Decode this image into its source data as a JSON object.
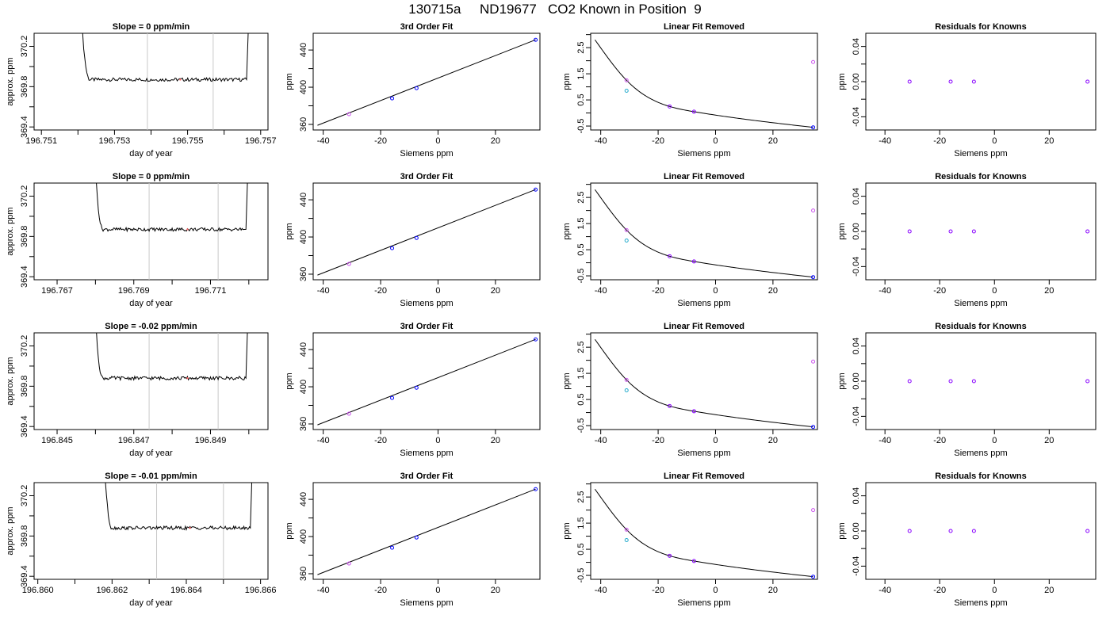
{
  "title": "130715a     ND19677   CO2 Known in Position  9",
  "colors": {
    "axis": "#000000",
    "curve": "#000000",
    "window_line": "#c8c8c8",
    "point_blue": "#0000ff",
    "point_violet": "#cc55ee",
    "point_cyan": "#22aacc",
    "point_purple": "#8800ff",
    "marker_red": "#ff6666"
  },
  "chart_data": [
    {
      "type": "line",
      "title": "Slope =  0  ppm/min",
      "xlabel": "day of year",
      "ylabel": "approx. ppm",
      "xlim": [
        196.7508,
        196.7572
      ],
      "ylim": [
        369.37,
        370.33
      ],
      "xticks": [
        196.751,
        196.753,
        196.755,
        196.757
      ],
      "xtick_labels": [
        "196.751",
        "196.753",
        "196.755",
        "196.757"
      ],
      "yticks": [
        369.4,
        369.8,
        370.2
      ],
      "ytick_labels": [
        "369.4",
        "369.8",
        "370.2"
      ],
      "window": [
        196.7539,
        196.7557
      ],
      "trace": {
        "start": 196.7521,
        "end": 196.7567,
        "level": 369.87
      },
      "marker": 196.7548
    },
    {
      "type": "scatter",
      "title": "3rd Order Fit",
      "xlabel": "Siemens ppm",
      "ylabel": "ppm",
      "xlim": [
        -43.5,
        35.5
      ],
      "ylim": [
        354,
        458
      ],
      "xticks": [
        -40,
        -20,
        0,
        20
      ],
      "xtick_labels": [
        "-40",
        "-20",
        "0",
        "20"
      ],
      "yticks": [
        360,
        400,
        440
      ],
      "ytick_labels": [
        "360",
        "400",
        "440"
      ],
      "points": [
        [
          -31,
          371
        ],
        [
          -16,
          388
        ],
        [
          -7.5,
          399
        ],
        [
          34,
          451
        ]
      ],
      "fit_line": {
        "x": [
          -42,
          34
        ],
        "y": [
          359,
          451
        ]
      }
    },
    {
      "type": "scatter",
      "title": "Linear Fit Removed",
      "xlabel": "Siemens ppm",
      "ylabel": "ppm",
      "xlim": [
        -43.5,
        35.5
      ],
      "ylim": [
        -0.65,
        3.05
      ],
      "xticks": [
        -40,
        -20,
        0,
        20
      ],
      "xtick_labels": [
        "-40",
        "-20",
        "0",
        "20"
      ],
      "yticks": [
        -0.5,
        0.5,
        1.5,
        2.5
      ],
      "ytick_labels": [
        "-0.5",
        "0.5",
        "1.5",
        "2.5"
      ],
      "points": [
        [
          -31,
          1.25
        ],
        [
          -31,
          0.85
        ],
        [
          -16,
          0.25
        ],
        [
          -7.5,
          0.05
        ],
        [
          34,
          1.95
        ],
        [
          34,
          -0.55
        ]
      ],
      "curve_knots": {
        "x": [
          -42,
          -31,
          -16,
          -7.5,
          34
        ],
        "y": [
          2.8,
          1.25,
          0.25,
          0.05,
          -0.55
        ]
      }
    },
    {
      "type": "scatter",
      "title": "Residuals for Knowns",
      "xlabel": "Siemens ppm",
      "ylabel": "ppm",
      "xlim": [
        -47,
        37
      ],
      "ylim": [
        -0.055,
        0.055
      ],
      "xticks": [
        -40,
        -20,
        0,
        20
      ],
      "xtick_labels": [
        "-40",
        "-20",
        "0",
        "20"
      ],
      "yticks": [
        -0.04,
        0.0,
        0.04
      ],
      "ytick_labels": [
        "-0.04",
        "0.00",
        "0.04"
      ],
      "points": [
        [
          -31,
          0
        ],
        [
          -16,
          0
        ],
        [
          -7.5,
          0
        ],
        [
          34,
          0
        ]
      ]
    },
    {
      "type": "line",
      "title": "Slope =  0  ppm/min",
      "xlabel": "day of year",
      "ylabel": "approx. ppm",
      "xlim": [
        196.7664,
        196.7725
      ],
      "ylim": [
        369.37,
        370.33
      ],
      "xticks": [
        196.767,
        196.769,
        196.771
      ],
      "xtick_labels": [
        "196.767",
        "196.769",
        "196.771"
      ],
      "yticks": [
        369.4,
        369.8,
        370.2
      ],
      "ytick_labels": [
        "369.4",
        "369.8",
        "370.2"
      ],
      "window": [
        196.7694,
        196.7712
      ],
      "trace": {
        "start": 196.768,
        "end": 196.772,
        "level": 369.87
      },
      "marker": 196.7704
    },
    {
      "type": "scatter",
      "title": "3rd Order Fit",
      "xlabel": "Siemens ppm",
      "ylabel": "ppm",
      "xlim": [
        -43.5,
        35.5
      ],
      "ylim": [
        354,
        458
      ],
      "xticks": [
        -40,
        -20,
        0,
        20
      ],
      "xtick_labels": [
        "-40",
        "-20",
        "0",
        "20"
      ],
      "yticks": [
        360,
        400,
        440
      ],
      "ytick_labels": [
        "360",
        "400",
        "440"
      ],
      "points": [
        [
          -31,
          371
        ],
        [
          -16,
          388
        ],
        [
          -7.5,
          399
        ],
        [
          34,
          451
        ]
      ],
      "fit_line": {
        "x": [
          -42,
          34
        ],
        "y": [
          359,
          451
        ]
      }
    },
    {
      "type": "scatter",
      "title": "Linear Fit Removed",
      "xlabel": "Siemens ppm",
      "ylabel": "ppm",
      "xlim": [
        -43.5,
        35.5
      ],
      "ylim": [
        -0.65,
        3.05
      ],
      "xticks": [
        -40,
        -20,
        0,
        20
      ],
      "xtick_labels": [
        "-40",
        "-20",
        "0",
        "20"
      ],
      "yticks": [
        -0.5,
        0.5,
        1.5,
        2.5
      ],
      "ytick_labels": [
        "-0.5",
        "0.5",
        "1.5",
        "2.5"
      ],
      "points": [
        [
          -31,
          1.25
        ],
        [
          -31,
          0.85
        ],
        [
          -16,
          0.25
        ],
        [
          -7.5,
          0.05
        ],
        [
          34,
          2.0
        ],
        [
          34,
          -0.55
        ]
      ],
      "curve_knots": {
        "x": [
          -42,
          -31,
          -16,
          -7.5,
          34
        ],
        "y": [
          2.8,
          1.25,
          0.25,
          0.05,
          -0.55
        ]
      }
    },
    {
      "type": "scatter",
      "title": "Residuals for Knowns",
      "xlabel": "Siemens ppm",
      "ylabel": "ppm",
      "xlim": [
        -47,
        37
      ],
      "ylim": [
        -0.055,
        0.055
      ],
      "xticks": [
        -40,
        -20,
        0,
        20
      ],
      "xtick_labels": [
        "-40",
        "-20",
        "0",
        "20"
      ],
      "yticks": [
        -0.04,
        0.0,
        0.04
      ],
      "ytick_labels": [
        "-0.04",
        "0.00",
        "0.04"
      ],
      "points": [
        [
          -31,
          0
        ],
        [
          -16,
          0
        ],
        [
          -7.5,
          0
        ],
        [
          34,
          0
        ]
      ]
    },
    {
      "type": "line",
      "title": "Slope =  -0.02  ppm/min",
      "xlabel": "day of year",
      "ylabel": "approx. ppm",
      "xlim": [
        196.8444,
        196.8505
      ],
      "ylim": [
        369.37,
        370.33
      ],
      "xticks": [
        196.845,
        196.847,
        196.849
      ],
      "xtick_labels": [
        "196.845",
        "196.847",
        "196.849"
      ],
      "yticks": [
        369.4,
        369.8,
        370.2
      ],
      "ytick_labels": [
        "369.4",
        "369.8",
        "370.2"
      ],
      "window": [
        196.8474,
        196.8492
      ],
      "trace": {
        "start": 196.846,
        "end": 196.85,
        "level": 369.88
      },
      "marker": 196.8484
    },
    {
      "type": "scatter",
      "title": "3rd Order Fit",
      "xlabel": "Siemens ppm",
      "ylabel": "ppm",
      "xlim": [
        -43.5,
        35.5
      ],
      "ylim": [
        354,
        458
      ],
      "xticks": [
        -40,
        -20,
        0,
        20
      ],
      "xtick_labels": [
        "-40",
        "-20",
        "0",
        "20"
      ],
      "yticks": [
        360,
        400,
        440
      ],
      "ytick_labels": [
        "360",
        "400",
        "440"
      ],
      "points": [
        [
          -31,
          371
        ],
        [
          -16,
          388
        ],
        [
          -7.5,
          399
        ],
        [
          34,
          451
        ]
      ],
      "fit_line": {
        "x": [
          -42,
          34
        ],
        "y": [
          359,
          451
        ]
      }
    },
    {
      "type": "scatter",
      "title": "Linear Fit Removed",
      "xlabel": "Siemens ppm",
      "ylabel": "ppm",
      "xlim": [
        -43.5,
        35.5
      ],
      "ylim": [
        -0.65,
        3.05
      ],
      "xticks": [
        -40,
        -20,
        0,
        20
      ],
      "xtick_labels": [
        "-40",
        "-20",
        "0",
        "20"
      ],
      "yticks": [
        -0.5,
        0.5,
        1.5,
        2.5
      ],
      "ytick_labels": [
        "-0.5",
        "0.5",
        "1.5",
        "2.5"
      ],
      "points": [
        [
          -31,
          1.25
        ],
        [
          -31,
          0.85
        ],
        [
          -16,
          0.25
        ],
        [
          -7.5,
          0.05
        ],
        [
          34,
          1.95
        ],
        [
          34,
          -0.55
        ]
      ],
      "curve_knots": {
        "x": [
          -42,
          -31,
          -16,
          -7.5,
          34
        ],
        "y": [
          2.8,
          1.25,
          0.25,
          0.05,
          -0.55
        ]
      }
    },
    {
      "type": "scatter",
      "title": "Residuals for Knowns",
      "xlabel": "Siemens ppm",
      "ylabel": "ppm",
      "xlim": [
        -47,
        37
      ],
      "ylim": [
        -0.055,
        0.055
      ],
      "xticks": [
        -40,
        -20,
        0,
        20
      ],
      "xtick_labels": [
        "-40",
        "-20",
        "0",
        "20"
      ],
      "yticks": [
        -0.04,
        0.0,
        0.04
      ],
      "ytick_labels": [
        "-0.04",
        "0.00",
        "0.04"
      ],
      "points": [
        [
          -31,
          0
        ],
        [
          -16,
          0
        ],
        [
          -7.5,
          0
        ],
        [
          34,
          0
        ]
      ]
    },
    {
      "type": "line",
      "title": "Slope =  -0.01  ppm/min",
      "xlabel": "day of year",
      "ylabel": "approx. ppm",
      "xlim": [
        196.8599,
        196.8662
      ],
      "ylim": [
        369.37,
        370.33
      ],
      "xticks": [
        196.86,
        196.862,
        196.864,
        196.866
      ],
      "xtick_labels": [
        "196.860",
        "196.862",
        "196.864",
        "196.866"
      ],
      "yticks": [
        369.4,
        369.8,
        370.2
      ],
      "ytick_labels": [
        "369.4",
        "369.8",
        "370.2"
      ],
      "window": [
        196.8632,
        196.865
      ],
      "trace": {
        "start": 196.8618,
        "end": 196.8658,
        "level": 369.88
      },
      "marker": 196.8641
    },
    {
      "type": "scatter",
      "title": "3rd Order Fit",
      "xlabel": "Siemens ppm",
      "ylabel": "ppm",
      "xlim": [
        -43.5,
        35.5
      ],
      "ylim": [
        354,
        458
      ],
      "xticks": [
        -40,
        -20,
        0,
        20
      ],
      "xtick_labels": [
        "-40",
        "-20",
        "0",
        "20"
      ],
      "yticks": [
        360,
        400,
        440
      ],
      "ytick_labels": [
        "360",
        "400",
        "440"
      ],
      "points": [
        [
          -31,
          371
        ],
        [
          -16,
          388
        ],
        [
          -7.5,
          399
        ],
        [
          34,
          451
        ]
      ],
      "fit_line": {
        "x": [
          -42,
          34
        ],
        "y": [
          359,
          451
        ]
      }
    },
    {
      "type": "scatter",
      "title": "Linear Fit Removed",
      "xlabel": "Siemens ppm",
      "ylabel": "ppm",
      "xlim": [
        -43.5,
        35.5
      ],
      "ylim": [
        -0.65,
        3.05
      ],
      "xticks": [
        -40,
        -20,
        0,
        20
      ],
      "xtick_labels": [
        "-40",
        "-20",
        "0",
        "20"
      ],
      "yticks": [
        -0.5,
        0.5,
        1.5,
        2.5
      ],
      "ytick_labels": [
        "-0.5",
        "0.5",
        "1.5",
        "2.5"
      ],
      "points": [
        [
          -31,
          1.25
        ],
        [
          -31,
          0.85
        ],
        [
          -16,
          0.25
        ],
        [
          -7.5,
          0.05
        ],
        [
          34,
          2.0
        ],
        [
          34,
          -0.55
        ]
      ],
      "curve_knots": {
        "x": [
          -42,
          -31,
          -16,
          -7.5,
          34
        ],
        "y": [
          2.8,
          1.25,
          0.25,
          0.05,
          -0.55
        ]
      }
    },
    {
      "type": "scatter",
      "title": "Residuals for Knowns",
      "xlabel": "Siemens ppm",
      "ylabel": "ppm",
      "xlim": [
        -47,
        37
      ],
      "ylim": [
        -0.055,
        0.055
      ],
      "xticks": [
        -40,
        -20,
        0,
        20
      ],
      "xtick_labels": [
        "-40",
        "-20",
        "0",
        "20"
      ],
      "yticks": [
        -0.04,
        0.0,
        0.04
      ],
      "ytick_labels": [
        "-0.04",
        "0.00",
        "0.04"
      ],
      "points": [
        [
          -31,
          0
        ],
        [
          -16,
          0
        ],
        [
          -7.5,
          0
        ],
        [
          34,
          0
        ]
      ]
    }
  ]
}
